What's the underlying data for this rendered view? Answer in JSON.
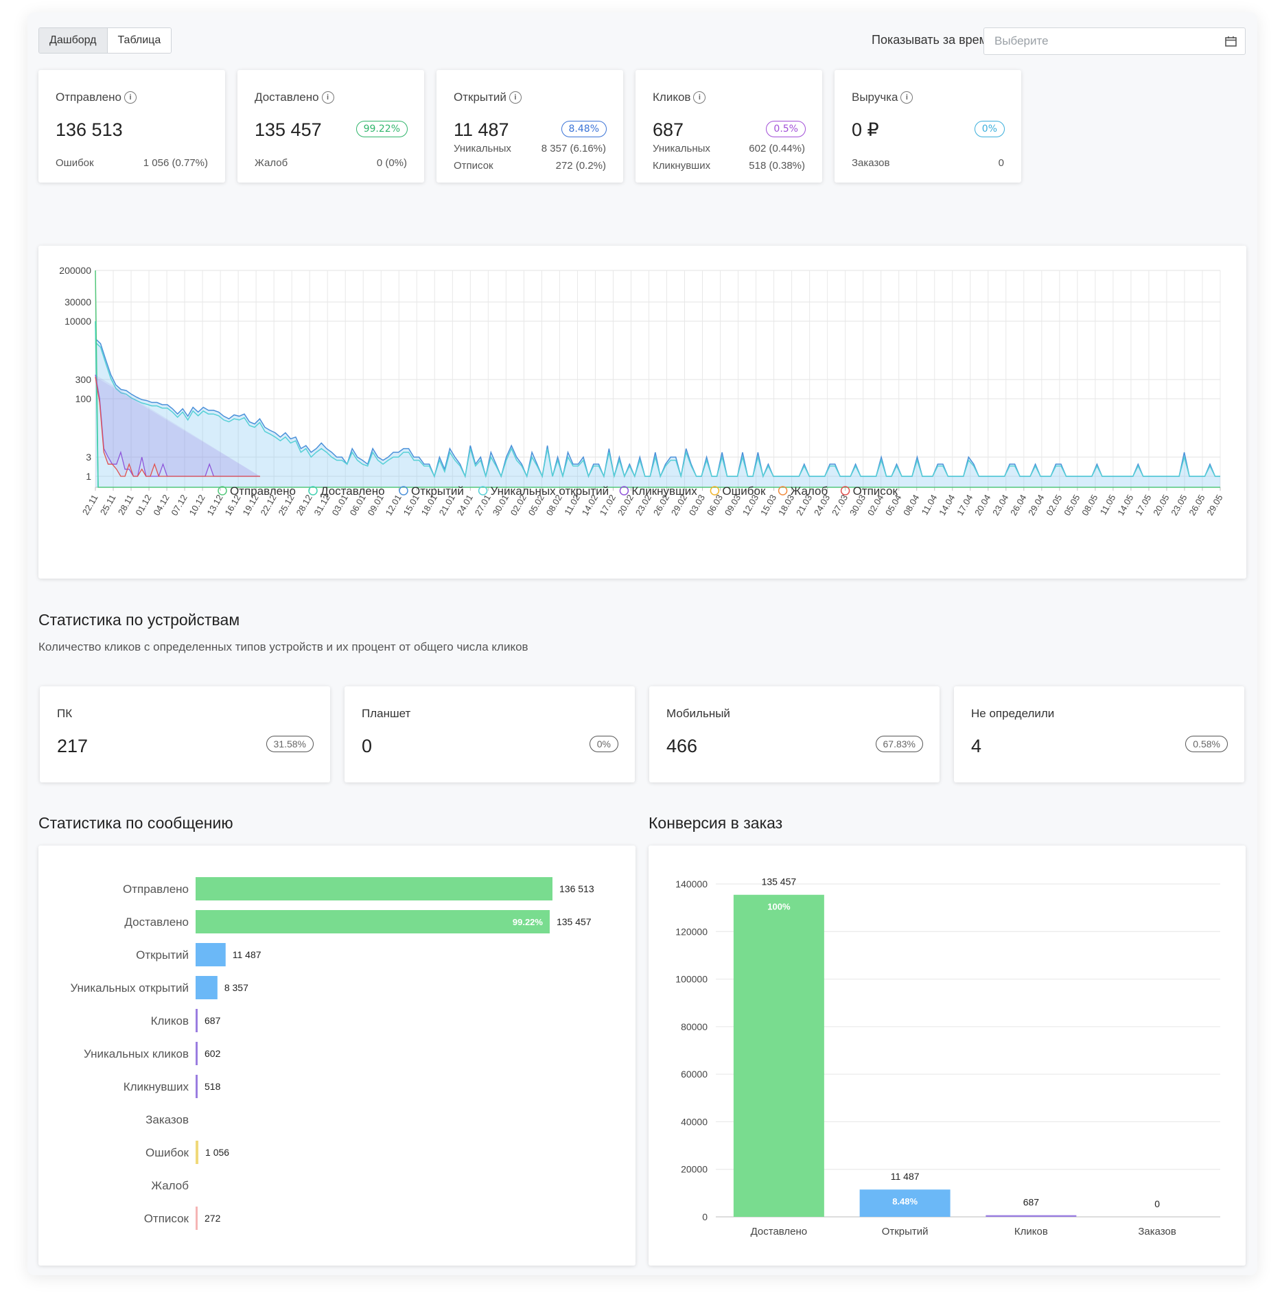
{
  "tabs": [
    {
      "label": "Дашборд",
      "active": true
    },
    {
      "label": "Таблица",
      "active": false
    }
  ],
  "period": {
    "label": "Показывать за время",
    "placeholder": "Выберите"
  },
  "kpis": [
    {
      "title": "Отправлено",
      "value": "136 513",
      "badge": null,
      "color": "#333",
      "rows": [
        {
          "label": "Ошибок",
          "value": "1 056 (0.77%)"
        }
      ]
    },
    {
      "title": "Доставлено",
      "value": "135 457",
      "badge": "99.22%",
      "color": "#30b56b",
      "rows": [
        {
          "label": "Жалоб",
          "value": "0 (0%)"
        }
      ]
    },
    {
      "title": "Открытий",
      "value": "11 487",
      "badge": "8.48%",
      "color": "#3a73d6",
      "rows": [
        {
          "label": "Уникальных",
          "value": "8 357 (6.16%)"
        },
        {
          "label": "Отписок",
          "value": "272 (0.2%)"
        }
      ]
    },
    {
      "title": "Кликов",
      "value": "687",
      "badge": "0.5%",
      "color": "#a14ed7",
      "rows": [
        {
          "label": "Уникальных",
          "value": "602 (0.44%)"
        },
        {
          "label": "Кликнувших",
          "value": "518 (0.38%)"
        }
      ]
    },
    {
      "title": "Выручка",
      "value": "0 ₽",
      "badge": "0%",
      "color": "#3aaedb",
      "rows": [
        {
          "label": "Заказов",
          "value": "0"
        }
      ]
    }
  ],
  "timeline_chart": {
    "type": "area",
    "y_scale": "log",
    "y_ticks": [
      "200000",
      "30000",
      "10000",
      "300",
      "100",
      "3",
      "1"
    ],
    "x_ticks": [
      "22.11",
      "25.11",
      "28.11",
      "01.12",
      "04.12",
      "07.12",
      "10.12",
      "13.12",
      "16.12",
      "19.12",
      "22.12",
      "25.12",
      "28.12",
      "31.12",
      "03.01",
      "06.01",
      "09.01",
      "12.01",
      "15.01",
      "18.01",
      "21.01",
      "24.01",
      "27.01",
      "30.01",
      "02.02",
      "05.02",
      "08.02",
      "11.02",
      "14.02",
      "17.02",
      "20.02",
      "23.02",
      "26.02",
      "29.02",
      "03.03",
      "06.03",
      "09.03",
      "12.03",
      "15.03",
      "18.03",
      "21.03",
      "24.03",
      "27.03",
      "30.03",
      "02.04",
      "05.04",
      "08.04",
      "11.04",
      "14.04",
      "17.04",
      "20.04",
      "23.04",
      "26.04",
      "29.04",
      "02.05",
      "05.05",
      "08.05",
      "11.05",
      "14.05",
      "17.05",
      "20.05",
      "23.05",
      "26.05",
      "29.05"
    ],
    "legend": [
      {
        "name": "Отправлено",
        "color": "#52c77a"
      },
      {
        "name": "Доставлено",
        "color": "#3fd0b0"
      },
      {
        "name": "Открытий",
        "color": "#4a90d9"
      },
      {
        "name": "Уникальных открытий",
        "color": "#56d0d6"
      },
      {
        "name": "Кликнувших",
        "color": "#8e52d9"
      },
      {
        "name": "Ошибок",
        "color": "#f0b429"
      },
      {
        "name": "Жалоб",
        "color": "#f08a3c"
      },
      {
        "name": "Отписок",
        "color": "#e0504d"
      }
    ],
    "series": {
      "opens": [
        3500,
        2600,
        1000,
        400,
        220,
        170,
        160,
        130,
        110,
        95,
        90,
        80,
        80,
        70,
        70,
        55,
        40,
        55,
        35,
        60,
        45,
        60,
        50,
        50,
        45,
        35,
        30,
        38,
        35,
        40,
        25,
        22,
        30,
        18,
        15,
        13,
        10,
        13,
        9,
        10,
        5,
        6,
        4,
        5,
        7,
        5,
        4,
        3,
        3,
        2,
        5,
        3,
        2.5,
        2,
        5,
        3,
        2.5,
        3,
        4,
        4,
        5,
        5,
        3,
        3,
        2,
        2,
        1,
        3,
        1.5,
        5,
        3,
        2,
        1,
        6,
        2,
        3,
        1,
        4,
        2,
        1,
        3,
        6,
        3,
        2,
        1,
        4,
        2,
        1,
        6,
        1,
        3,
        1,
        4,
        2,
        2,
        3,
        1,
        2,
        2,
        1,
        5,
        1,
        3,
        1,
        2,
        1,
        3,
        1,
        1,
        4,
        1,
        2,
        3,
        3,
        1,
        5,
        2,
        1,
        1,
        3,
        1,
        1,
        4,
        1,
        1,
        1,
        4,
        1,
        1,
        4,
        1,
        2,
        1,
        1,
        1,
        1,
        1,
        1,
        2,
        1,
        1,
        1,
        1,
        2,
        2,
        1,
        1,
        1,
        2,
        1,
        1,
        1,
        1,
        3,
        1,
        1,
        2,
        1,
        1,
        1,
        3,
        1,
        1,
        1,
        2,
        2,
        1,
        1,
        1,
        1,
        3,
        2,
        1,
        1,
        1,
        1,
        1,
        1,
        2,
        2,
        1,
        1,
        1,
        2,
        1,
        1,
        1,
        2,
        2,
        1,
        1,
        1,
        1,
        1,
        1,
        2,
        1,
        1,
        1,
        1,
        1,
        1,
        1,
        2,
        1,
        1,
        1,
        1,
        1,
        1,
        1,
        1,
        4,
        1,
        1,
        1,
        1,
        2,
        1,
        1
      ],
      "unique": [
        2800,
        2100,
        800,
        320,
        180,
        140,
        130,
        105,
        90,
        78,
        72,
        65,
        65,
        57,
        57,
        45,
        33,
        45,
        28,
        48,
        36,
        48,
        40,
        40,
        36,
        28,
        25,
        30,
        28,
        32,
        20,
        18,
        24,
        14,
        12,
        10,
        8,
        10,
        7,
        8,
        4,
        5,
        3,
        4,
        5,
        4,
        3,
        2.5,
        2.5,
        2,
        4,
        2.5,
        2,
        1.8,
        4,
        2.5,
        2,
        2.5,
        3,
        3,
        4,
        4,
        2.5,
        2.5,
        1.8,
        1.8,
        1,
        2.5,
        1.3,
        4,
        2.5,
        1.8,
        1,
        5,
        1.8,
        2.5,
        1,
        3,
        1.8,
        1,
        2.5,
        5,
        2.5,
        1.8,
        1,
        3,
        1.8,
        1,
        5,
        1,
        2.5,
        1,
        3,
        1.8,
        1.8,
        2.5,
        1,
        1.8,
        1.8,
        1,
        4,
        1,
        2.5,
        1,
        1.8,
        1,
        2.5,
        1,
        1,
        3,
        1,
        1.8,
        2.5,
        2.5,
        1,
        4,
        1.8,
        1,
        1,
        2.5,
        1,
        1,
        3,
        1,
        1,
        1,
        3,
        1,
        1,
        3,
        1,
        1.8,
        1,
        1,
        1,
        1,
        1,
        1,
        1.8,
        1,
        1,
        1,
        1,
        1.8,
        1.8,
        1,
        1,
        1,
        1.8,
        1,
        1,
        1,
        1,
        2.5,
        1,
        1,
        1.8,
        1,
        1,
        1,
        2.5,
        1,
        1,
        1,
        1.8,
        1.8,
        1,
        1,
        1,
        1,
        2.5,
        1.8,
        1,
        1,
        1,
        1,
        1,
        1,
        1.8,
        1.8,
        1,
        1,
        1,
        1.8,
        1,
        1,
        1,
        1.8,
        1.8,
        1,
        1,
        1,
        1,
        1,
        1,
        1.8,
        1,
        1,
        1,
        1,
        1,
        1,
        1,
        1.8,
        1,
        1,
        1,
        1,
        1,
        1,
        1,
        1,
        3,
        1,
        1,
        1,
        1,
        1.8,
        1,
        1
      ]
    }
  },
  "devices_section": {
    "title": "Статистика по устройствам",
    "subtitle": "Количество кликов с определенных типов устройств и их процент от общего числа кликов",
    "items": [
      {
        "title": "ПК",
        "value": "217",
        "badge": "31.58%"
      },
      {
        "title": "Планшет",
        "value": "0",
        "badge": "0%"
      },
      {
        "title": "Мобильный",
        "value": "466",
        "badge": "67.83%"
      },
      {
        "title": "Не определили",
        "value": "4",
        "badge": "0.58%"
      }
    ]
  },
  "message_stats": {
    "title": "Статистика по сообщению",
    "chart_data": {
      "type": "bar",
      "orientation": "horizontal",
      "categories": [
        "Отправлено",
        "Доставлено",
        "Открытий",
        "Уникальных открытий",
        "Кликов",
        "Уникальных кликов",
        "Кликнувших",
        "Заказов",
        "Ошибок",
        "Жалоб",
        "Отписок"
      ],
      "values": [
        136513,
        135457,
        11487,
        8357,
        687,
        602,
        518,
        0,
        1056,
        0,
        272
      ],
      "labels": [
        "136 513",
        "135 457",
        "11 487",
        "8 357",
        "687",
        "602",
        "518",
        "",
        "1 056",
        "",
        "272"
      ],
      "inner_labels": [
        "",
        "99.22%",
        "",
        "",
        "",
        "",
        "",
        "",
        "",
        "",
        ""
      ],
      "colors": [
        "#79dc8f",
        "#79dc8f",
        "#6bb8f7",
        "#6bb8f7",
        "#9a7de0",
        "#9a7de0",
        "#9a7de0",
        "#9a7de0",
        "#f0d97a",
        "#f5a5a0",
        "#f5b5b5"
      ]
    }
  },
  "conversion": {
    "title": "Конверсия в заказ",
    "chart_data": {
      "type": "bar",
      "categories": [
        "Доставлено",
        "Открытий",
        "Кликов",
        "Заказов"
      ],
      "values": [
        135457,
        11487,
        687,
        0
      ],
      "labels": [
        "135 457",
        "11 487",
        "687",
        "0"
      ],
      "inner_labels": [
        "100%",
        "8.48%",
        "",
        ""
      ],
      "colors": [
        "#79dc8f",
        "#6bb8f7",
        "#9a7de0",
        "#9a7de0"
      ],
      "y_ticks": [
        "140000",
        "120000",
        "100000",
        "80000",
        "60000",
        "40000",
        "20000",
        "0"
      ],
      "ylim": [
        0,
        140000
      ]
    }
  }
}
